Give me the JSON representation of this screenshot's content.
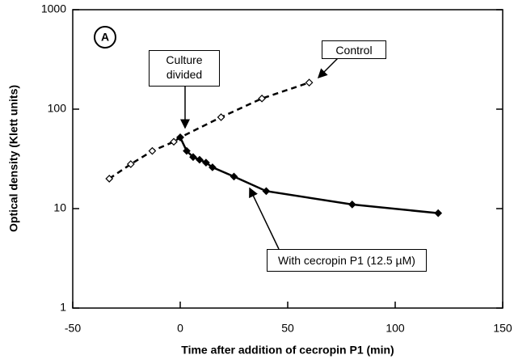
{
  "chart_data": {
    "type": "line",
    "panel_label": "A",
    "xlabel": "Time after addition of cecropin P1 (min)",
    "ylabel": "Optical density  (Klett units)",
    "xlim": [
      -50,
      150
    ],
    "xticks": [
      -50,
      0,
      50,
      100,
      150
    ],
    "ylim": [
      1,
      1000
    ],
    "yticks": [
      1,
      10,
      100,
      1000
    ],
    "log_y": true,
    "series": [
      {
        "name": "Control",
        "color": "#000000",
        "dashed": true,
        "marker_fill": "#ffffff",
        "x": [
          -33,
          -23,
          -13,
          -3,
          0,
          19,
          38,
          60
        ],
        "values": [
          20,
          28,
          38,
          47,
          52,
          83,
          128,
          185
        ]
      },
      {
        "name": "With cecropin P1 (12.5 µM)",
        "color": "#000000",
        "dashed": false,
        "marker_fill": "#000000",
        "x": [
          0,
          3,
          6,
          9,
          12,
          15,
          25,
          40,
          80,
          120
        ],
        "values": [
          52,
          38,
          33,
          31,
          29,
          26,
          21,
          15,
          11,
          9
        ]
      }
    ],
    "annotations": [
      "Culture divided"
    ]
  }
}
